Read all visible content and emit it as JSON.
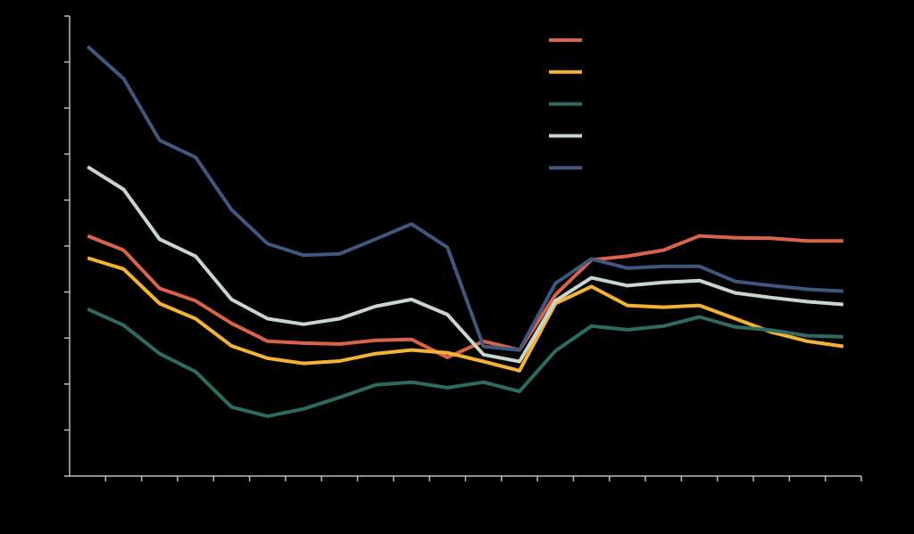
{
  "chart_data": {
    "type": "line",
    "categories": [
      null,
      null,
      null,
      null,
      null,
      null,
      null,
      null,
      null,
      null,
      null,
      null,
      null,
      null,
      null,
      null,
      null,
      null,
      null,
      null,
      null,
      null
    ],
    "series": [
      {
        "color": "#d9644a",
        "values": [
          5.22,
          4.91,
          4.08,
          3.81,
          3.32,
          2.93,
          2.89,
          2.87,
          2.95,
          2.97,
          2.58,
          2.93,
          2.74,
          3.94,
          4.7,
          4.78,
          4.91,
          5.22,
          5.18,
          5.17,
          5.11,
          5.11
        ]
      },
      {
        "color": "#f5b335",
        "values": [
          4.74,
          4.5,
          3.75,
          3.42,
          2.83,
          2.56,
          2.45,
          2.5,
          2.66,
          2.74,
          2.68,
          2.49,
          2.29,
          3.75,
          4.12,
          3.71,
          3.67,
          3.71,
          3.42,
          3.13,
          2.93,
          2.82
        ]
      },
      {
        "color": "#2e6b63",
        "values": [
          3.63,
          3.28,
          2.66,
          2.27,
          1.5,
          1.3,
          1.46,
          1.71,
          1.98,
          2.04,
          1.92,
          2.04,
          1.84,
          2.72,
          3.26,
          3.18,
          3.26,
          3.46,
          3.24,
          3.17,
          3.05,
          3.03
        ]
      },
      {
        "color": "#c8d6d0",
        "values": [
          6.72,
          6.23,
          5.15,
          4.78,
          3.84,
          3.42,
          3.3,
          3.42,
          3.69,
          3.84,
          3.51,
          2.64,
          2.49,
          3.81,
          4.31,
          4.14,
          4.21,
          4.25,
          3.98,
          3.88,
          3.79,
          3.73
        ]
      },
      {
        "color": "#40577f",
        "values": [
          9.34,
          8.64,
          7.3,
          6.93,
          5.79,
          5.05,
          4.8,
          4.83,
          5.15,
          5.48,
          4.97,
          2.82,
          2.74,
          4.19,
          4.72,
          4.52,
          4.56,
          4.56,
          4.23,
          4.14,
          4.06,
          4.02
        ]
      }
    ],
    "ylim": [
      0,
      10
    ],
    "yticks": [
      0,
      1,
      2,
      3,
      4,
      5,
      6,
      7,
      8,
      9,
      10
    ],
    "legend": "top-right"
  }
}
